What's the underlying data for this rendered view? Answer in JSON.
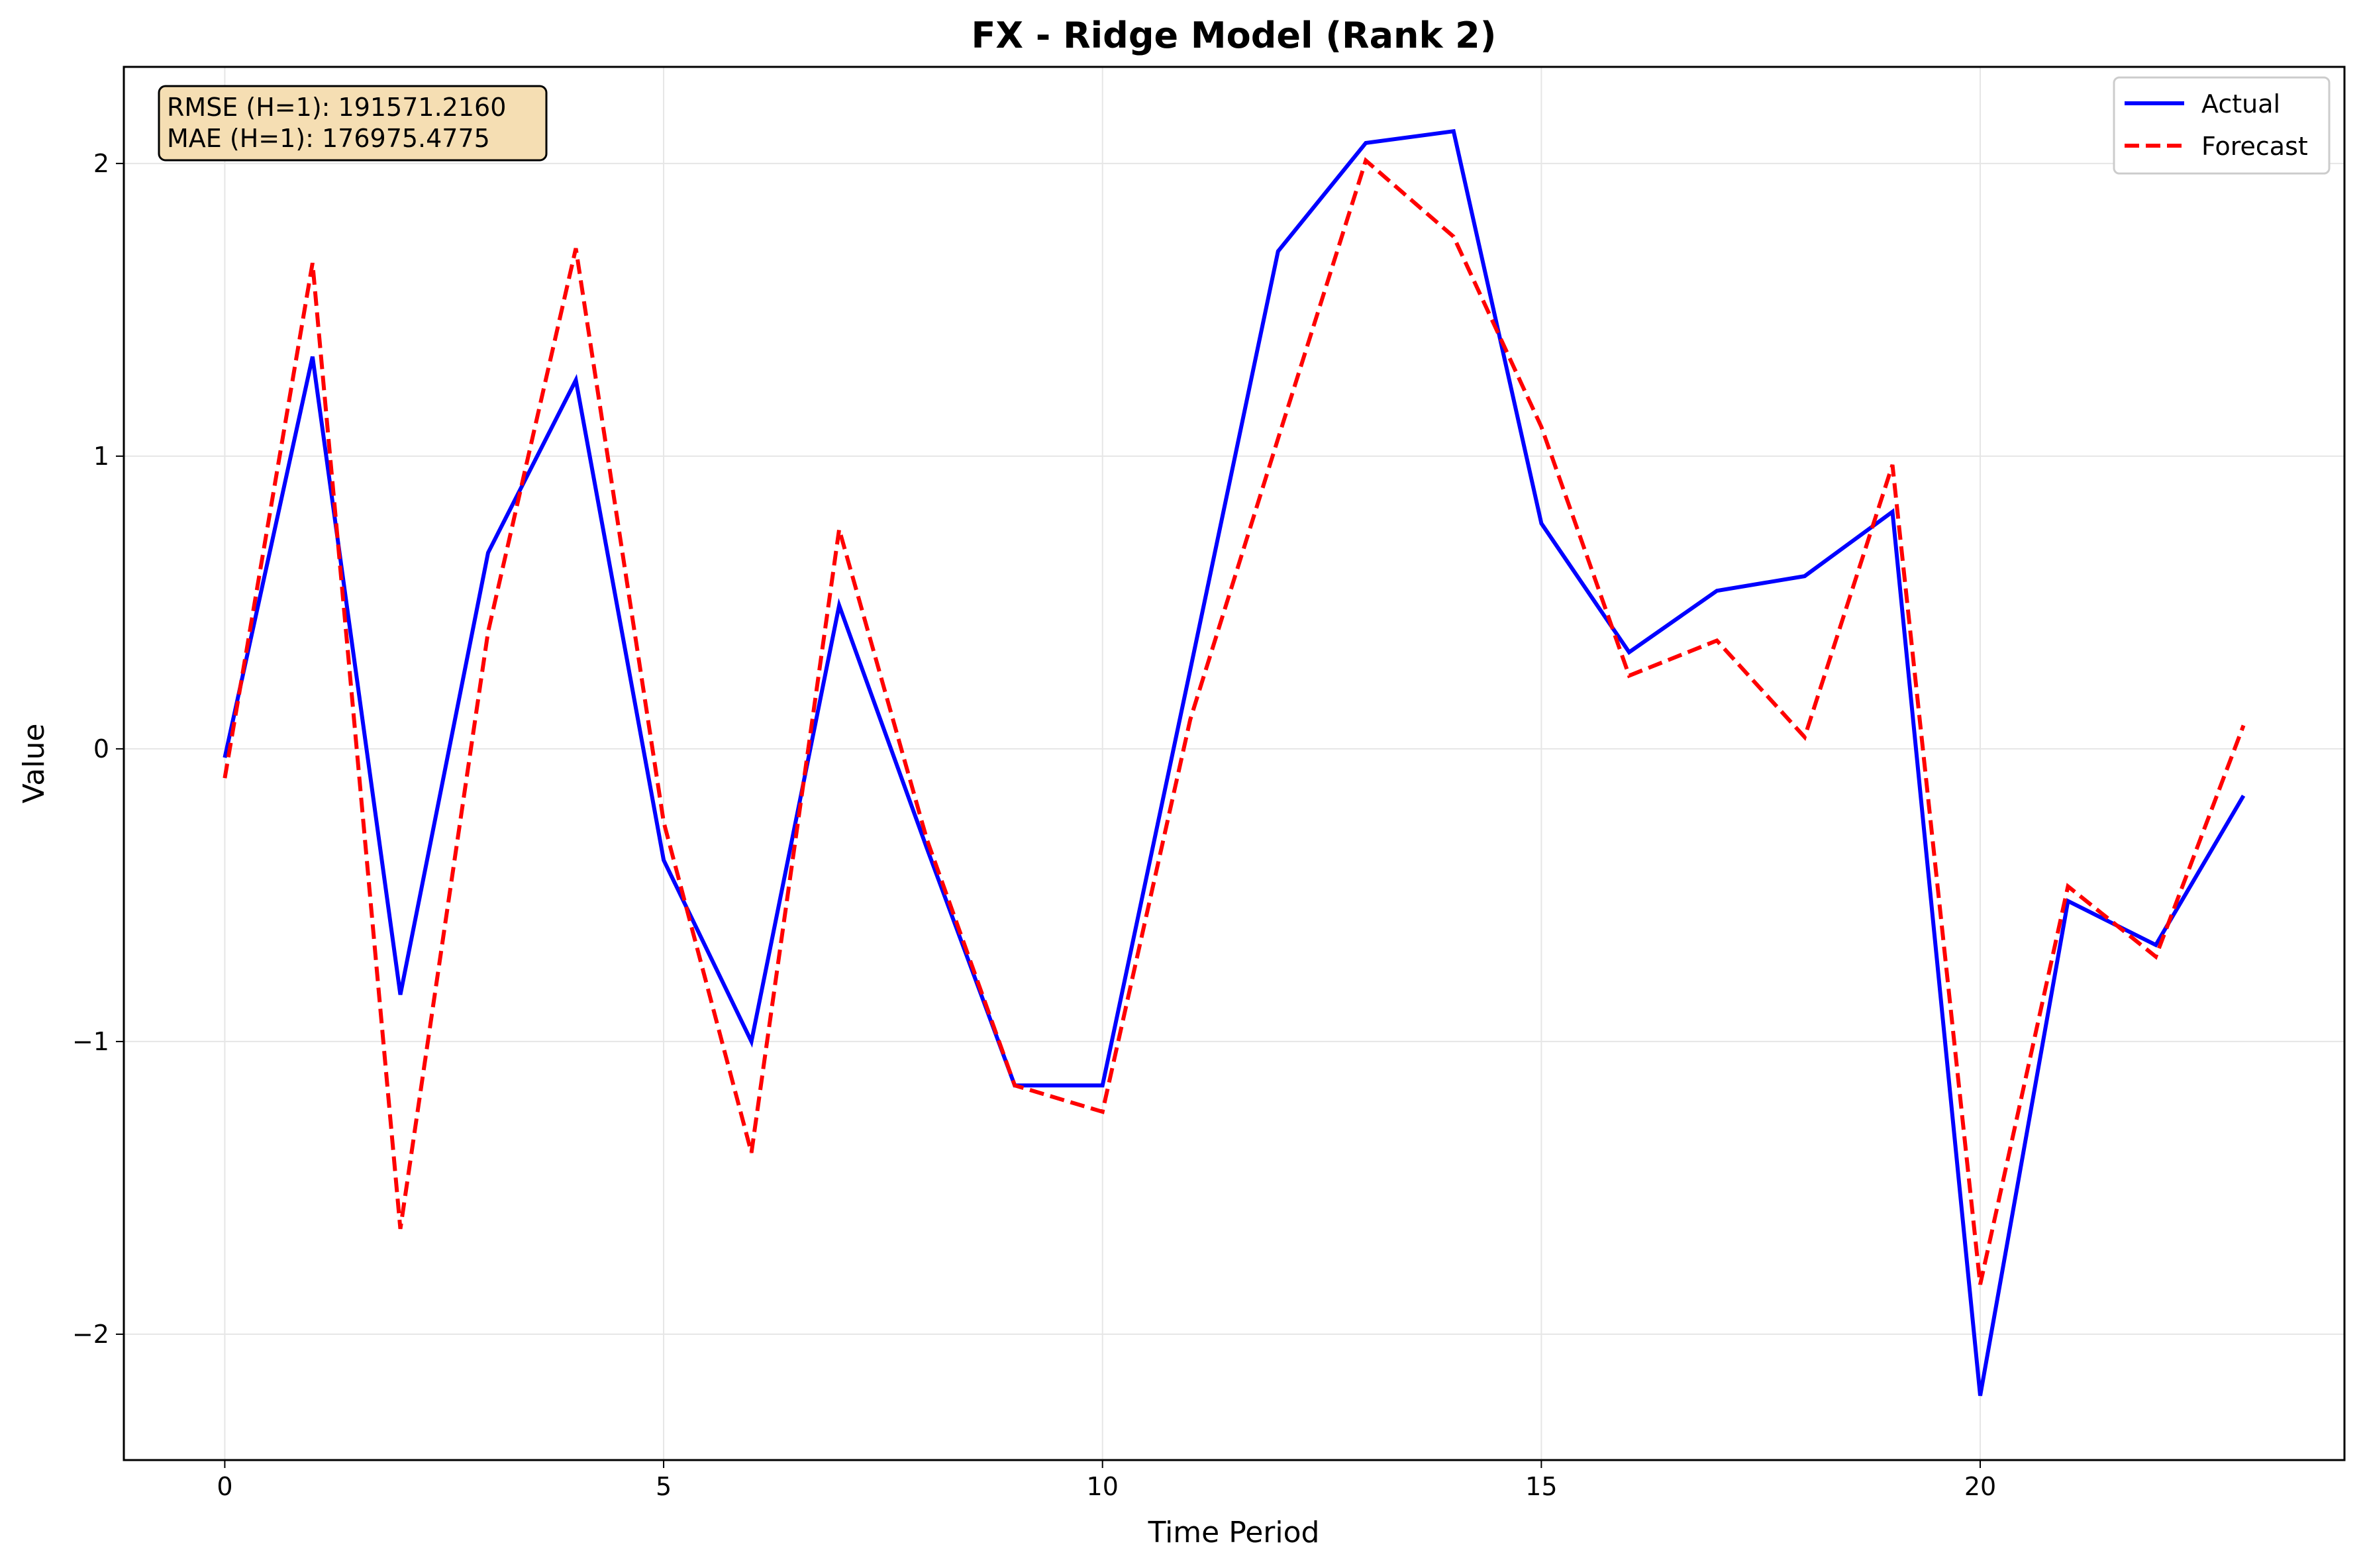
{
  "chart_data": {
    "type": "line",
    "title": "FX - Ridge Model (Rank 2)",
    "xlabel": "Time Period",
    "ylabel": "Value",
    "xlim": [
      -1.15,
      24.15
    ],
    "ylim": [
      -2.43,
      2.33
    ],
    "xticks": [
      0,
      5,
      10,
      15,
      20
    ],
    "xtick_labels": [
      "0",
      "5",
      "10",
      "15",
      "20"
    ],
    "yticks": [
      -2,
      -1,
      0,
      1,
      2
    ],
    "ytick_labels": [
      "−2",
      "−1",
      "0",
      "1",
      "2"
    ],
    "grid": true,
    "legend_position": "top-right",
    "x": [
      0,
      1,
      2,
      3,
      4,
      5,
      6,
      7,
      8,
      9,
      10,
      11,
      12,
      13,
      14,
      15,
      16,
      17,
      18,
      19,
      20,
      21,
      22,
      23
    ],
    "series": [
      {
        "name": "Actual",
        "color": "#0000ff",
        "style": "solid",
        "values": [
          -0.03,
          1.34,
          -0.84,
          0.67,
          1.26,
          -0.38,
          -1.0,
          0.49,
          -0.34,
          -1.15,
          -1.15,
          0.27,
          1.7,
          2.07,
          2.11,
          0.77,
          0.33,
          0.54,
          0.59,
          0.81,
          -2.21,
          -0.52,
          -0.67,
          -0.16
        ]
      },
      {
        "name": "Forecast",
        "color": "#ff0000",
        "style": "dashed",
        "values": [
          -0.1,
          1.66,
          -1.64,
          0.4,
          1.71,
          -0.25,
          -1.38,
          0.75,
          -0.31,
          -1.15,
          -1.24,
          0.1,
          1.06,
          2.01,
          1.75,
          1.1,
          0.25,
          0.37,
          0.04,
          0.97,
          -1.83,
          -0.47,
          -0.71,
          0.08
        ]
      }
    ],
    "annotation": {
      "lines": [
        "RMSE (H=1): 191571.2160",
        "MAE (H=1): 176975.4775"
      ],
      "background": "#f5deb3"
    }
  }
}
